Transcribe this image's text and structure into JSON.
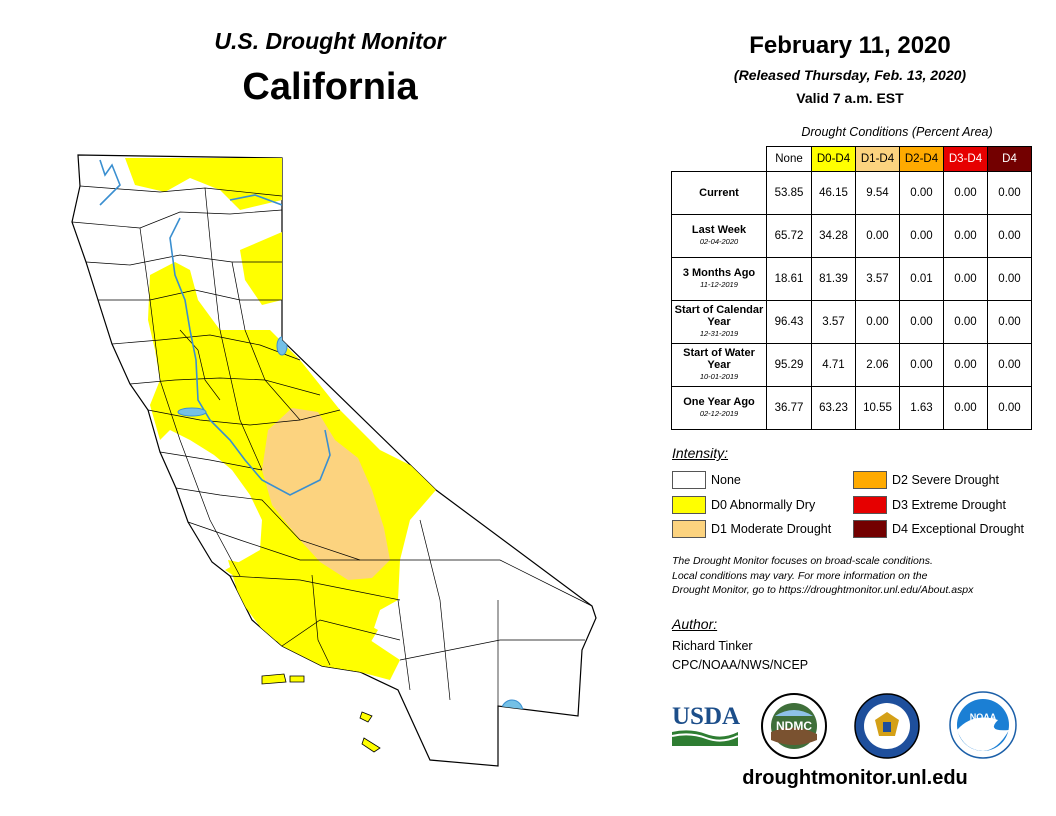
{
  "header": {
    "subtitle": "U.S. Drought Monitor",
    "title": "California",
    "date": "February 11, 2020",
    "released": "(Released Thursday, Feb. 13, 2020)",
    "valid": "Valid 7 a.m. EST"
  },
  "table": {
    "caption": "Drought Conditions (Percent Area)",
    "columns": [
      {
        "label": "None",
        "color": "#ffffff"
      },
      {
        "label": "D0-D4",
        "color": "#ffff00"
      },
      {
        "label": "D1-D4",
        "color": "#fcd37f"
      },
      {
        "label": "D2-D4",
        "color": "#ffaa00"
      },
      {
        "label": "D3-D4",
        "color": "#e60000"
      },
      {
        "label": "D4",
        "color": "#730000"
      }
    ],
    "rows": [
      {
        "label": "Current",
        "sub": "",
        "values": [
          "53.85",
          "46.15",
          "9.54",
          "0.00",
          "0.00",
          "0.00"
        ]
      },
      {
        "label": "Last Week",
        "sub": "02-04-2020",
        "values": [
          "65.72",
          "34.28",
          "0.00",
          "0.00",
          "0.00",
          "0.00"
        ]
      },
      {
        "label": "3 Months Ago",
        "sub": "11-12-2019",
        "values": [
          "18.61",
          "81.39",
          "3.57",
          "0.01",
          "0.00",
          "0.00"
        ]
      },
      {
        "label": "Start of Calendar Year",
        "sub": "12-31-2019",
        "values": [
          "96.43",
          "3.57",
          "0.00",
          "0.00",
          "0.00",
          "0.00"
        ]
      },
      {
        "label": "Start of Water Year",
        "sub": "10-01-2019",
        "values": [
          "95.29",
          "4.71",
          "2.06",
          "0.00",
          "0.00",
          "0.00"
        ]
      },
      {
        "label": "One Year Ago",
        "sub": "02-12-2019",
        "values": [
          "36.77",
          "63.23",
          "10.55",
          "1.63",
          "0.00",
          "0.00"
        ]
      }
    ]
  },
  "legend": {
    "title": "Intensity:",
    "items": [
      {
        "label": "None",
        "color": "#ffffff"
      },
      {
        "label": "D0 Abnormally Dry",
        "color": "#ffff00"
      },
      {
        "label": "D1 Moderate Drought",
        "color": "#fcd37f"
      },
      {
        "label": "D2 Severe Drought",
        "color": "#ffaa00"
      },
      {
        "label": "D3 Extreme Drought",
        "color": "#e60000"
      },
      {
        "label": "D4 Exceptional Drought",
        "color": "#730000"
      }
    ]
  },
  "note": {
    "line1": "The Drought Monitor focuses on broad-scale conditions.",
    "line2": "Local conditions may vary. For more information on the",
    "line3": "Drought Monitor, go to https://droughtmonitor.unl.edu/About.aspx"
  },
  "author": {
    "heading": "Author:",
    "name": "Richard Tinker",
    "org": "CPC/NOAA/NWS/NCEP"
  },
  "logos": {
    "usda": "USDA",
    "ndmc": "NDMC",
    "noaa": "NOAA",
    "usda_icon": "usda-logo",
    "ndmc_icon": "ndmc-logo",
    "doc_icon": "department-of-commerce-seal",
    "noaa_icon": "noaa-logo"
  },
  "footer": {
    "url": "droughtmonitor.unl.edu"
  },
  "map": {
    "state": "California",
    "colors": {
      "water": "#74c0e6",
      "border": "#000000"
    }
  }
}
